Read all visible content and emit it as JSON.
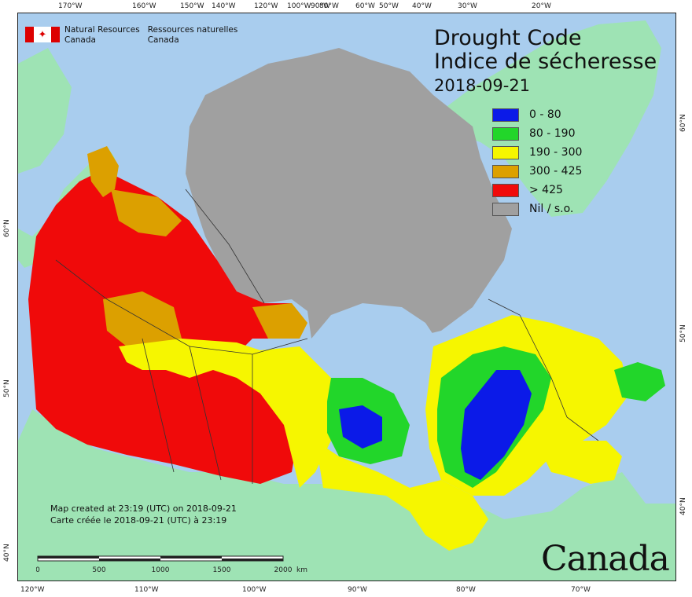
{
  "map": {
    "title_en": "Drought Code",
    "title_fr": "Indice de sécheresse",
    "date": "2018-09-21",
    "legend": [
      {
        "label": "0 - 80",
        "color": "#0b1ae8"
      },
      {
        "label": "80 - 190",
        "color": "#22d62a"
      },
      {
        "label": "190 - 300",
        "color": "#f6f600"
      },
      {
        "label": "300 - 425",
        "color": "#dca000"
      },
      {
        "label": "> 425",
        "color": "#f00a0a"
      },
      {
        "label": "Nil / s.o.",
        "color": "#a0a0a0"
      }
    ],
    "colors": {
      "ocean": "#a9cdee",
      "land_outside": "#9ee3b4",
      "nodata": "#a0a0a0"
    },
    "agency": {
      "name_en_1": "Natural Resources",
      "name_en_2": "Canada",
      "name_fr_1": "Ressources naturelles",
      "name_fr_2": "Canada"
    },
    "credit_en": "Map created at 23:19 (UTC) on 2018-09-21",
    "credit_fr": "Carte créée le 2018-09-21 (UTC) à 23:19",
    "wordmark": "Canada",
    "scale_labels": [
      "0",
      "500",
      "1000",
      "1500",
      "2000"
    ],
    "scale_unit": "km",
    "top_ticks": [
      "170°W",
      "160°W",
      "150°W",
      "140°W",
      "120°W",
      "100°W",
      "90°W",
      "80°W",
      "60°W",
      "50°W",
      "40°W",
      "30°W",
      "20°W"
    ],
    "bottom_ticks": [
      "120°W",
      "110°W",
      "100°W",
      "90°W",
      "80°W",
      "70°W"
    ],
    "left_ticks": [
      "60°N",
      "50°N",
      "40°N"
    ],
    "right_ticks": [
      "60°N",
      "50°N",
      "40°N"
    ]
  }
}
